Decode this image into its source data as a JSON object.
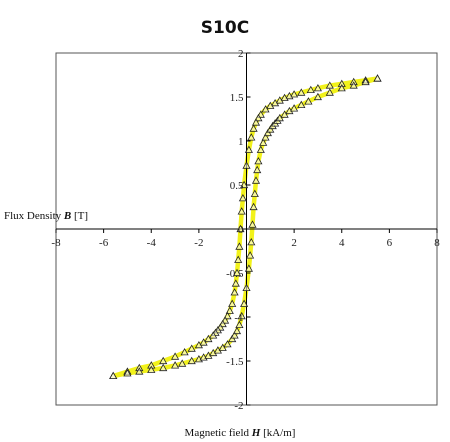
{
  "chart_data": {
    "type": "scatter",
    "title": "S10C",
    "xlabel": {
      "pre": "Magnetic field ",
      "var": "H",
      "post": " [kA/m]"
    },
    "ylabel": {
      "pre": "Flux Density ",
      "var": "B",
      "post": " [T]"
    },
    "xlim": [
      -8,
      8
    ],
    "ylim": [
      -2,
      2
    ],
    "xticks": [
      -8,
      -6,
      -4,
      -2,
      0,
      2,
      4,
      6,
      8
    ],
    "yticks": [
      2,
      1.5,
      1,
      0.5,
      0,
      -0.5,
      -1,
      -1.5,
      -2
    ],
    "grid": false,
    "legend": "none",
    "colors": {
      "curve": "#f2f21a",
      "marker": "#222222",
      "axis": "#000000"
    },
    "series": [
      {
        "marker": "triangle-open",
        "x": [
          5.5,
          5.0,
          4.5,
          4.0,
          3.5,
          3.0,
          2.7,
          2.3,
          2.0,
          1.8,
          1.6,
          1.4,
          1.2,
          1.0,
          0.8,
          0.6,
          0.5,
          0.4,
          0.3,
          0.2,
          0.1,
          0.0,
          -0.1,
          -0.15,
          -0.2,
          -0.25,
          -0.3,
          -0.35,
          -0.4,
          -0.45,
          -0.5,
          -0.6,
          -0.7,
          -0.8,
          -0.9,
          -1.0,
          -1.1,
          -1.2,
          -1.3,
          -1.4,
          -1.6,
          -1.8,
          -2.0,
          -2.3,
          -2.6,
          -3.0,
          -3.5,
          -4.0,
          -4.5,
          -5.0,
          -5.6
        ],
        "y": [
          1.71,
          1.69,
          1.67,
          1.65,
          1.63,
          1.6,
          1.58,
          1.55,
          1.53,
          1.51,
          1.49,
          1.46,
          1.43,
          1.4,
          1.36,
          1.3,
          1.26,
          1.21,
          1.14,
          1.04,
          0.9,
          0.72,
          0.5,
          0.35,
          0.2,
          0.0,
          -0.2,
          -0.35,
          -0.5,
          -0.62,
          -0.72,
          -0.85,
          -0.93,
          -0.99,
          -1.04,
          -1.08,
          -1.12,
          -1.15,
          -1.18,
          -1.21,
          -1.25,
          -1.29,
          -1.32,
          -1.36,
          -1.4,
          -1.45,
          -1.5,
          -1.55,
          -1.58,
          -1.62,
          -1.67
        ]
      },
      {
        "marker": "triangle-open",
        "x": [
          -5.6,
          -5.0,
          -4.5,
          -4.0,
          -3.5,
          -3.0,
          -2.7,
          -2.3,
          -2.0,
          -1.8,
          -1.6,
          -1.4,
          -1.2,
          -1.0,
          -0.8,
          -0.6,
          -0.5,
          -0.4,
          -0.3,
          -0.2,
          -0.1,
          0.0,
          0.1,
          0.15,
          0.2,
          0.25,
          0.3,
          0.35,
          0.4,
          0.45,
          0.5,
          0.6,
          0.7,
          0.8,
          0.9,
          1.0,
          1.1,
          1.2,
          1.3,
          1.4,
          1.6,
          1.8,
          2.0,
          2.3,
          2.6,
          3.0,
          3.5,
          4.0,
          4.5,
          5.0,
          5.5
        ],
        "y": [
          -1.67,
          -1.64,
          -1.62,
          -1.6,
          -1.58,
          -1.55,
          -1.53,
          -1.5,
          -1.48,
          -1.46,
          -1.44,
          -1.41,
          -1.38,
          -1.35,
          -1.31,
          -1.25,
          -1.21,
          -1.16,
          -1.09,
          -0.99,
          -0.85,
          -0.67,
          -0.45,
          -0.3,
          -0.15,
          0.05,
          0.25,
          0.4,
          0.55,
          0.67,
          0.77,
          0.9,
          0.98,
          1.04,
          1.09,
          1.13,
          1.17,
          1.2,
          1.23,
          1.26,
          1.3,
          1.34,
          1.37,
          1.41,
          1.45,
          1.5,
          1.55,
          1.6,
          1.63,
          1.67,
          1.71
        ]
      }
    ]
  }
}
